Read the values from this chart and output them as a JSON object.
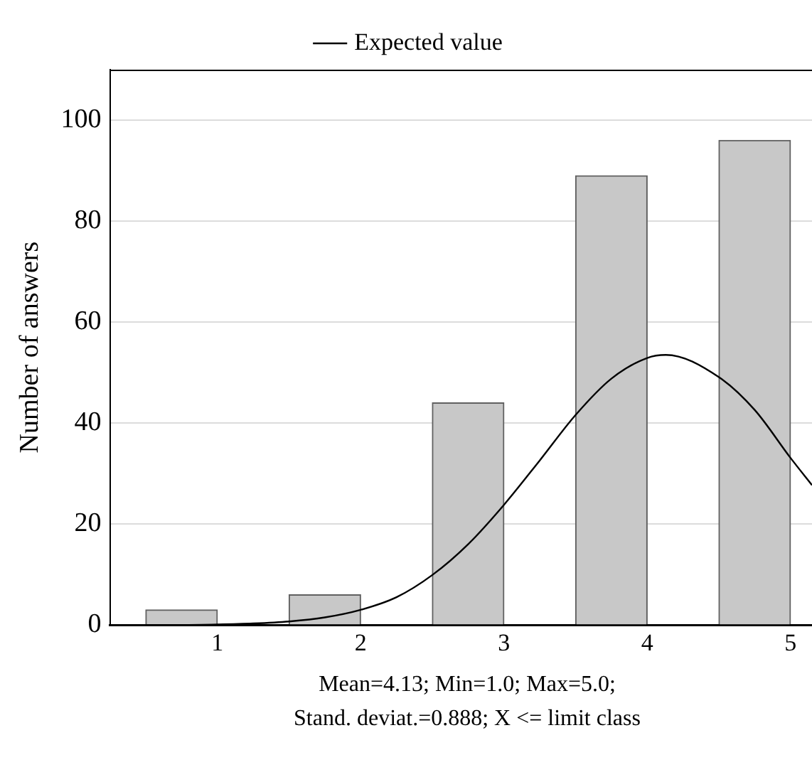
{
  "chart_data": {
    "type": "histogram",
    "ylabel": "Number of answers",
    "bins": [
      0.5,
      1,
      1.5,
      2,
      2.5,
      3,
      3.5,
      4,
      4.5,
      5
    ],
    "values": [
      3,
      0,
      6,
      0,
      44,
      0,
      89,
      0,
      96
    ],
    "color": "#c8c8c8",
    "series": [
      {
        "type": "line",
        "name": "Expected value",
        "color": "#000000",
        "x": [
          0.5,
          0.75,
          1,
          1.25,
          1.5,
          1.75,
          2,
          2.25,
          2.5,
          2.75,
          3,
          3.25,
          3.5,
          3.75,
          4,
          4.13,
          4.5,
          4.75,
          5,
          5.15
        ],
        "values": [
          0,
          0,
          0.1,
          0.3,
          0.7,
          1.5,
          3,
          5.5,
          9.9,
          16,
          23.8,
          32.6,
          41.6,
          48.8,
          52.9,
          53.5,
          49.1,
          42.6,
          33.1,
          27.7
        ]
      }
    ],
    "xlim": [
      0.25,
      5.15
    ],
    "xticks": [
      1,
      2,
      3,
      4,
      5
    ],
    "ylim": [
      0,
      110
    ],
    "yticks": [
      0,
      20,
      40,
      60,
      80,
      100
    ],
    "grid": "y",
    "legend": "top",
    "annotations": [
      "Mean=4.13; Min=1.0; Max=5.0;",
      "Stand. deviat.=0.888; X <= limit class"
    ]
  }
}
